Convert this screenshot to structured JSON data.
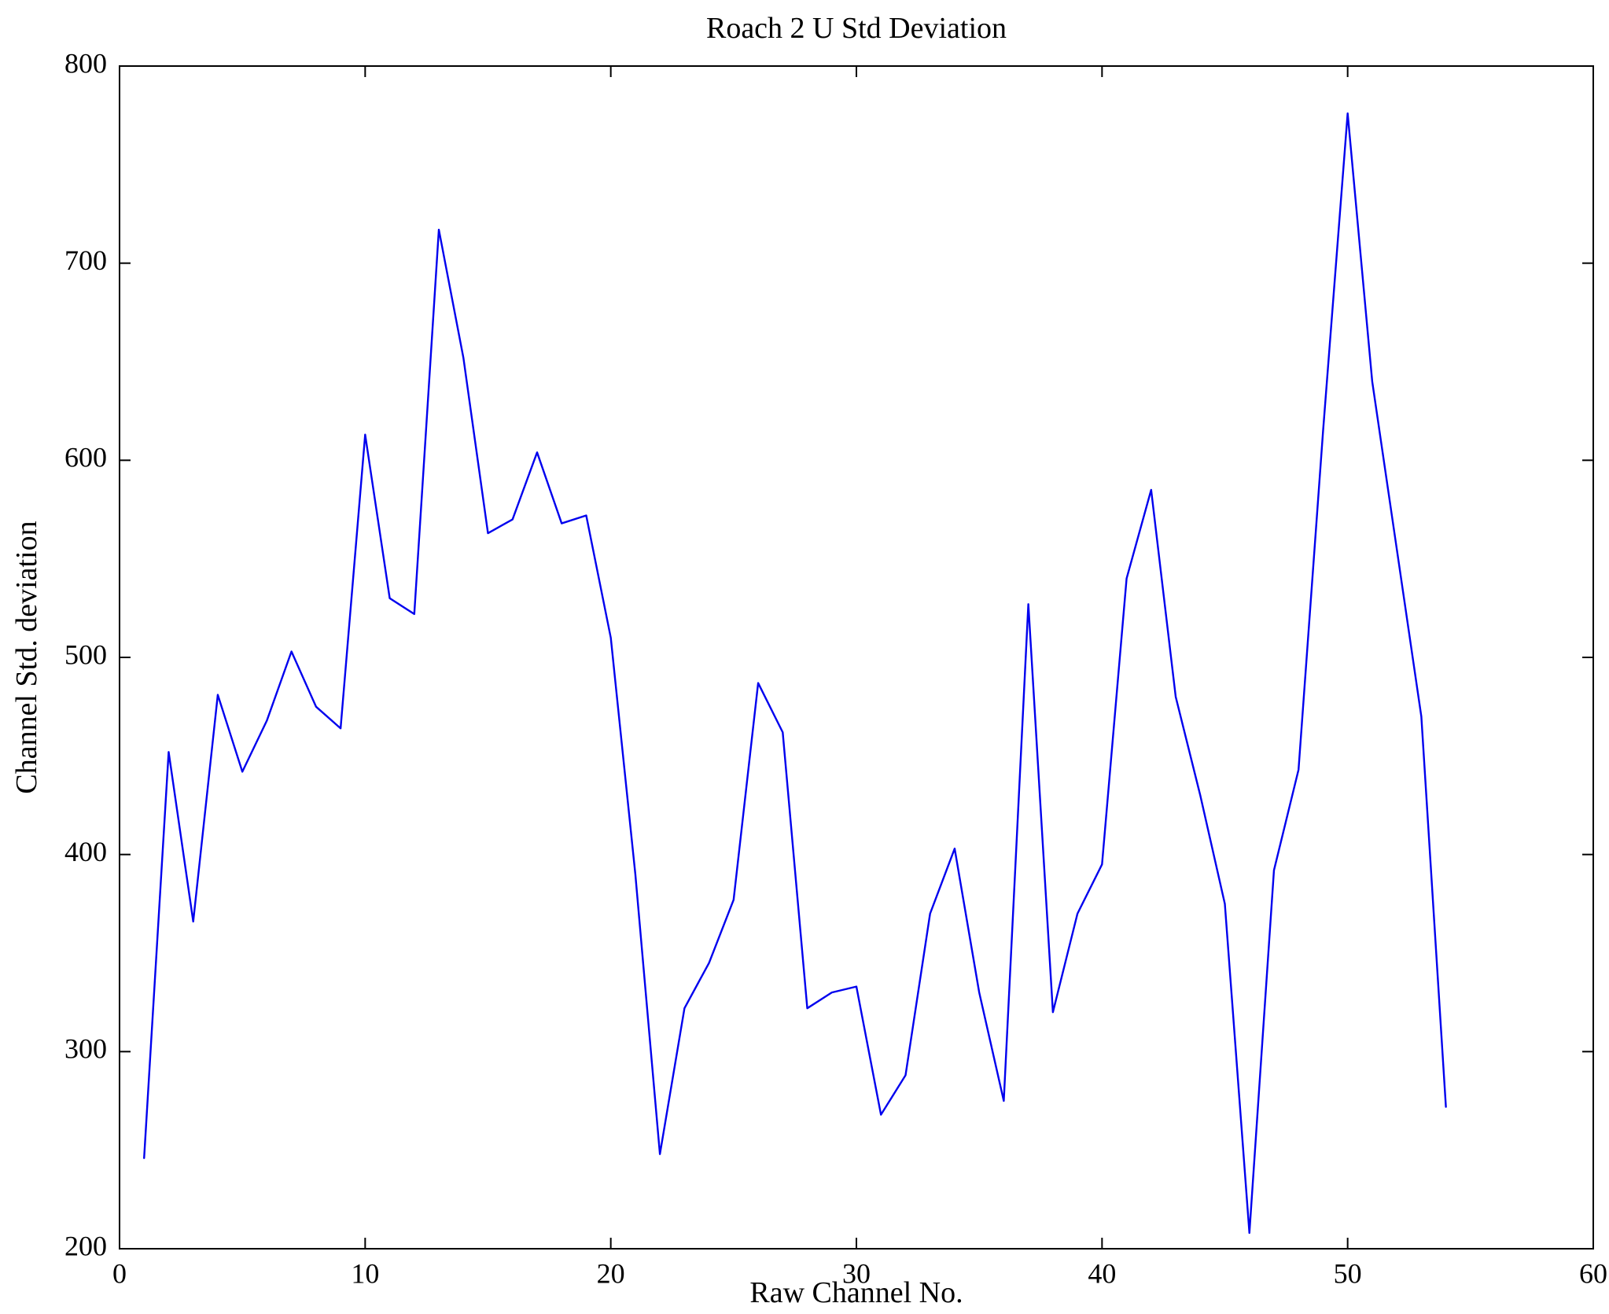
{
  "figure": {
    "title": "Roach 2 U Std Deviation",
    "xlabel": "Raw Channel No.",
    "ylabel": "Channel Std. deviation"
  },
  "chart_data": {
    "type": "line",
    "title": "Roach 2 U Std Deviation",
    "xlabel": "Raw Channel No.",
    "ylabel": "Channel Std. deviation",
    "xlim": [
      0,
      60
    ],
    "ylim": [
      200,
      800
    ],
    "xticks": [
      0,
      10,
      20,
      30,
      40,
      50,
      60
    ],
    "yticks": [
      200,
      300,
      400,
      500,
      600,
      700,
      800
    ],
    "grid": false,
    "legend": null,
    "line_color": "#0000ee",
    "axis_color": "#000000",
    "background_color": "#ffffff",
    "x": [
      1,
      2,
      3,
      4,
      5,
      6,
      7,
      8,
      9,
      10,
      11,
      12,
      13,
      14,
      15,
      16,
      17,
      18,
      19,
      20,
      21,
      22,
      23,
      24,
      25,
      26,
      27,
      28,
      29,
      30,
      31,
      32,
      33,
      34,
      35,
      36,
      37,
      38,
      39,
      40,
      41,
      42,
      43,
      44,
      45,
      46,
      47,
      48,
      49,
      50,
      51,
      52,
      53,
      54
    ],
    "y": [
      246,
      452,
      366,
      481,
      442,
      468,
      503,
      475,
      464,
      613,
      530,
      522,
      717,
      652,
      563,
      570,
      604,
      568,
      572,
      510,
      390,
      248,
      322,
      345,
      377,
      487,
      462,
      322,
      330,
      333,
      268,
      288,
      370,
      403,
      330,
      275,
      527,
      320,
      370,
      395,
      540,
      585,
      480,
      430,
      375,
      208,
      392,
      443,
      615,
      776,
      640,
      555,
      470,
      272
    ]
  }
}
